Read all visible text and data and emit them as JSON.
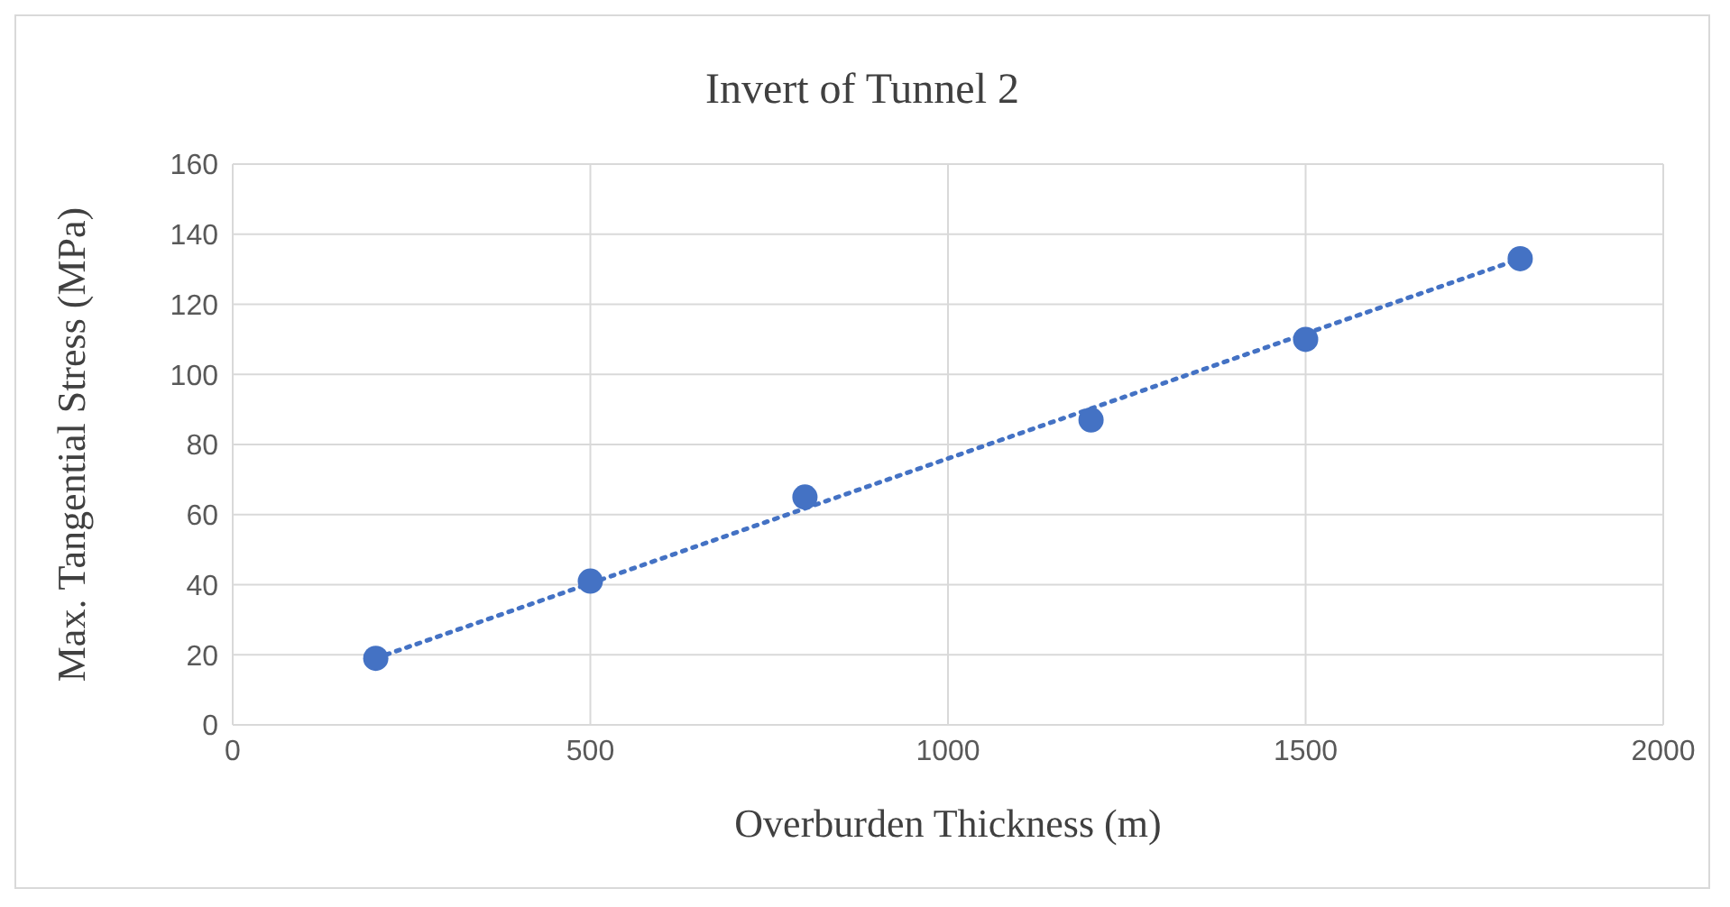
{
  "chart_data": {
    "type": "scatter",
    "title": "Invert of Tunnel 2",
    "xlabel": "Overburden Thickness (m)",
    "ylabel": "Max. Tangential Stress (MPa)",
    "xlim": [
      0,
      2000
    ],
    "xticks": [
      0,
      500,
      1000,
      1500,
      2000
    ],
    "ylim": [
      0,
      160
    ],
    "yticks": [
      0,
      20,
      40,
      60,
      80,
      100,
      120,
      140,
      160
    ],
    "grid": true,
    "series": [
      {
        "x": [
          200,
          500,
          800,
          1200,
          1500,
          1800
        ],
        "values": [
          19,
          41,
          65,
          87,
          110,
          133
        ],
        "color": "#4472c4",
        "marker": "circle"
      },
      {
        "type": "line",
        "x": [
          200,
          1800
        ],
        "values": [
          19,
          133
        ],
        "color": "#4472c4",
        "line_style": "dotted",
        "marker": "none"
      }
    ]
  }
}
